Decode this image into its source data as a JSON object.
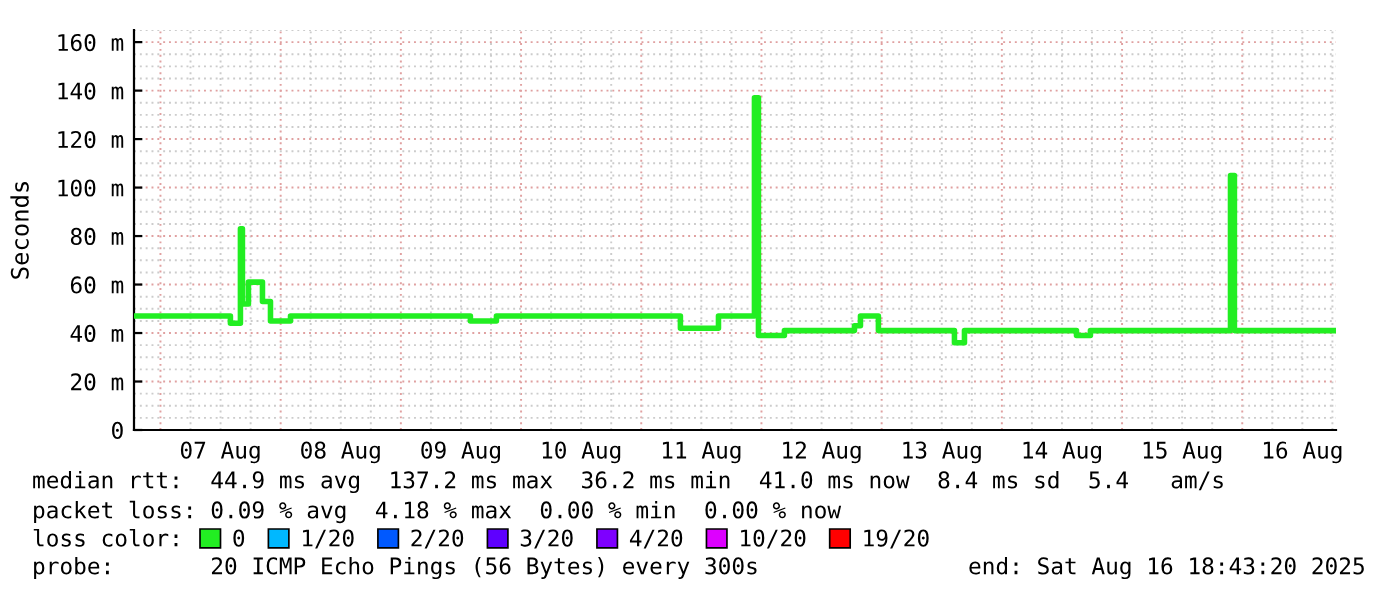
{
  "chart_data": {
    "type": "step",
    "ylabel": "Seconds",
    "x": [
      "2025-08-06T18:43",
      "2025-08-07T13:58",
      "2025-08-07T15:58",
      "2025-08-07T16:22",
      "2025-08-07T17:34",
      "2025-08-07T20:22",
      "2025-08-07T21:58",
      "2025-08-08T01:58",
      "2025-08-09T13:53",
      "2025-08-09T19:05",
      "2025-08-11T07:49",
      "2025-08-11T15:25",
      "2025-08-11T22:36",
      "2025-08-11T23:24",
      "2025-08-12T04:35",
      "2025-08-12T18:34",
      "2025-08-12T19:46",
      "2025-08-12T23:21",
      "2025-08-13T14:32",
      "2025-08-13T16:32",
      "2025-08-14T14:54",
      "2025-08-14T17:41",
      "2025-08-15T21:39",
      "2025-08-15T22:26",
      "2025-08-16T18:43"
    ],
    "series": [
      {
        "name": "0",
        "color": "#22ee22",
        "values": [
          47,
          44,
          83,
          52,
          61,
          53,
          45,
          47,
          45,
          47,
          42,
          47,
          137,
          39,
          41,
          43,
          47,
          41,
          36,
          41,
          39,
          41,
          105,
          41,
          41
        ]
      },
      {
        "name": "1/20",
        "color": "#00b8ff",
        "values": [
          null,
          null,
          null,
          null,
          null,
          null,
          null,
          null,
          null,
          null,
          null,
          null,
          null,
          null,
          null,
          null,
          null,
          null,
          null,
          null,
          null,
          null,
          null,
          null,
          null
        ]
      },
      {
        "name": "2/20",
        "color": "#0059ff",
        "values": [
          null,
          null,
          null,
          null,
          null,
          null,
          null,
          null,
          null,
          null,
          null,
          null,
          null,
          null,
          null,
          null,
          null,
          null,
          null,
          null,
          null,
          null,
          null,
          null,
          null
        ]
      },
      {
        "name": "3/20",
        "color": "#5e00ff",
        "values": [
          null,
          null,
          null,
          null,
          null,
          null,
          null,
          null,
          null,
          null,
          null,
          null,
          null,
          null,
          null,
          null,
          null,
          null,
          null,
          null,
          null,
          null,
          null,
          null,
          null
        ]
      },
      {
        "name": "4/20",
        "color": "#7e00ff",
        "values": [
          null,
          null,
          null,
          null,
          null,
          null,
          null,
          null,
          null,
          null,
          null,
          null,
          null,
          null,
          null,
          null,
          null,
          null,
          null,
          null,
          null,
          null,
          null,
          null,
          null
        ]
      },
      {
        "name": "10/20",
        "color": "#dd00ff",
        "values": [
          null,
          null,
          null,
          null,
          null,
          null,
          null,
          null,
          null,
          null,
          null,
          null,
          null,
          null,
          null,
          null,
          null,
          null,
          null,
          null,
          null,
          null,
          null,
          null,
          null
        ]
      },
      {
        "name": "19/20",
        "color": "#ff0000",
        "values": [
          null,
          null,
          null,
          null,
          null,
          null,
          null,
          null,
          null,
          null,
          null,
          null,
          null,
          null,
          null,
          null,
          null,
          null,
          null,
          null,
          null,
          null,
          null,
          null,
          null
        ]
      }
    ],
    "xlim": [
      "2025-08-06T18:43",
      "2025-08-16T18:43"
    ],
    "xticks": [
      {
        "value": "2025-08-07T12:00",
        "label": "07 Aug"
      },
      {
        "value": "2025-08-08T12:00",
        "label": "08 Aug"
      },
      {
        "value": "2025-08-09T12:00",
        "label": "09 Aug"
      },
      {
        "value": "2025-08-10T12:00",
        "label": "10 Aug"
      },
      {
        "value": "2025-08-11T12:00",
        "label": "11 Aug"
      },
      {
        "value": "2025-08-12T12:00",
        "label": "12 Aug"
      },
      {
        "value": "2025-08-13T12:00",
        "label": "13 Aug"
      },
      {
        "value": "2025-08-14T12:00",
        "label": "14 Aug"
      },
      {
        "value": "2025-08-15T12:00",
        "label": "15 Aug"
      },
      {
        "value": "2025-08-16T12:00",
        "label": "16 Aug"
      }
    ],
    "ylim": [
      0,
      165
    ],
    "yticks": [
      0,
      {
        "value": 20,
        "label": "20 m"
      },
      {
        "value": 40,
        "label": "40 m"
      },
      {
        "value": 60,
        "label": "60 m"
      },
      {
        "value": 80,
        "label": "80 m"
      },
      {
        "value": 100,
        "label": "100 m"
      },
      {
        "value": 120,
        "label": "120 m"
      },
      {
        "value": 140,
        "label": "140 m"
      },
      {
        "value": 160,
        "label": "160 m"
      }
    ],
    "grid": true,
    "legend": "bottom",
    "legend_title": "loss color:",
    "annotations": [
      "median rtt:  44.9 ms avg  137.2 ms max  36.2 ms min  41.0 ms now  8.4 ms sd  5.4   am/s",
      "packet loss: 0.09 % avg  4.18 % max  0.00 % min  0.00 % now",
      "probe:       20 ICMP Echo Pings (56 Bytes) every 300s",
      "end: Sat Aug 16 18:43:20 2025"
    ]
  }
}
